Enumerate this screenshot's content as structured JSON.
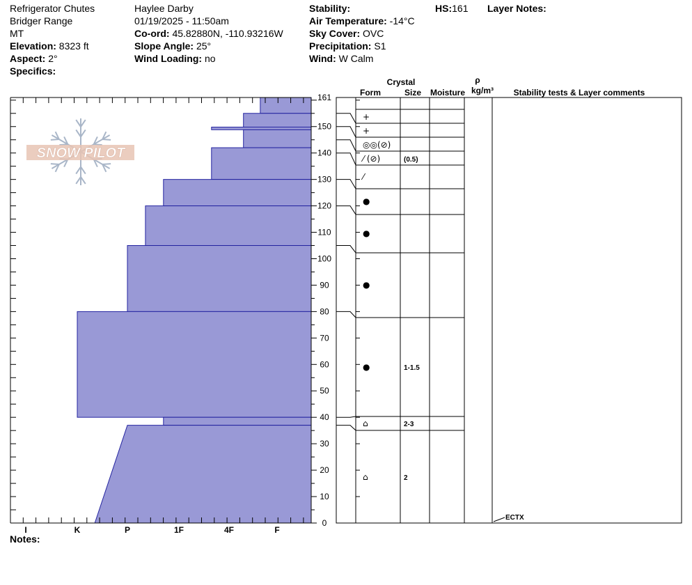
{
  "header": {
    "col1": {
      "location": "Refrigerator Chutes",
      "range": "Bridger Range",
      "state": "MT",
      "elevation_label": "Elevation:",
      "elevation": "8323 ft",
      "aspect_label": "Aspect:",
      "aspect": "2°",
      "specifics_label": "Specifics:"
    },
    "col2": {
      "observer": "Haylee Darby",
      "datetime": "01/19/2025 - 11:50am",
      "coord_label": "Co-ord:",
      "coord": "45.82880N, -110.93216W",
      "slope_label": "Slope Angle:",
      "slope": "25°",
      "wind_loading_label": "Wind Loading:",
      "wind_loading": "no"
    },
    "col3": {
      "stability_label": "Stability:",
      "air_temp_label": "Air Temperature:",
      "air_temp": "-14°C",
      "sky_label": "Sky Cover:",
      "sky": "OVC",
      "precip_label": "Precipitation:",
      "precip": "S1",
      "wind_label": "Wind:",
      "wind": "W Calm"
    },
    "hs_label": "HS:",
    "hs": "161",
    "layer_notes_label": "Layer Notes:"
  },
  "logo_text": "SNOW PILOT",
  "notes_label": "Notes:",
  "columns": {
    "crystal": "Crystal",
    "form": "Form",
    "size": "Size",
    "moisture": "Moisture",
    "rho": "ρ",
    "density_unit": "kg/m³",
    "stability": "Stability tests & Layer comments"
  },
  "chart_data": {
    "type": "bar",
    "title": "",
    "orientation": "horizontal-step",
    "y_axis": {
      "range": [
        0,
        161
      ],
      "ticks": [
        0,
        10,
        20,
        30,
        40,
        50,
        60,
        70,
        80,
        90,
        100,
        110,
        120,
        130,
        140,
        150,
        161
      ]
    },
    "x_axis": {
      "categories": [
        "I",
        "K",
        "P",
        "1F",
        "4F",
        "F"
      ],
      "direction": "right-to-left"
    },
    "hardness_layers": [
      {
        "bottom": 155,
        "top": 161,
        "hardness": 0.35
      },
      {
        "bottom": 149.8,
        "top": 155,
        "hardness": 0.7
      },
      {
        "bottom": 148.8,
        "top": 149.8,
        "hardness": 1.35
      },
      {
        "bottom": 142,
        "top": 148.8,
        "hardness": 0.7
      },
      {
        "bottom": 130,
        "top": 142,
        "hardness": 1.35
      },
      {
        "bottom": 120,
        "top": 130,
        "hardness": 2.3
      },
      {
        "bottom": 105,
        "top": 120,
        "hardness": 2.65
      },
      {
        "bottom": 80,
        "top": 105,
        "hardness": 3.0
      },
      {
        "bottom": 40,
        "top": 80,
        "hardness": 4.0
      },
      {
        "bottom": 37,
        "top": 40,
        "hardness": 2.3
      },
      {
        "bottom": 0,
        "top": 37,
        "hardness_top": 3.0,
        "hardness_bottom": 3.65
      }
    ],
    "layer_boundaries": [
      161,
      155,
      150,
      145,
      140,
      130,
      120,
      105,
      80,
      40,
      37,
      0
    ],
    "crystal_rows": [
      {
        "y": 158,
        "form": "+",
        "size": ""
      },
      {
        "y": 153,
        "form": "+",
        "size": ""
      },
      {
        "y": 146.5,
        "form": "◎◎(⊘)",
        "size": ""
      },
      {
        "y": 141.5,
        "form": "⁄ (⊘)",
        "size": "(0.5)"
      },
      {
        "y": 135,
        "form": "⁄",
        "size": ""
      },
      {
        "y": 125,
        "form": "●",
        "size": ""
      },
      {
        "y": 112.5,
        "form": "●",
        "size": ""
      },
      {
        "y": 92.5,
        "form": "●",
        "size": ""
      },
      {
        "y": 60,
        "form": "●",
        "size": "1-1.5"
      },
      {
        "y": 38.5,
        "form": "⌂",
        "size": "2-3"
      },
      {
        "y": 18,
        "form": "⌂",
        "size": "2"
      }
    ],
    "stability_tests": [
      {
        "y": 0,
        "label": "ECTX"
      }
    ]
  }
}
